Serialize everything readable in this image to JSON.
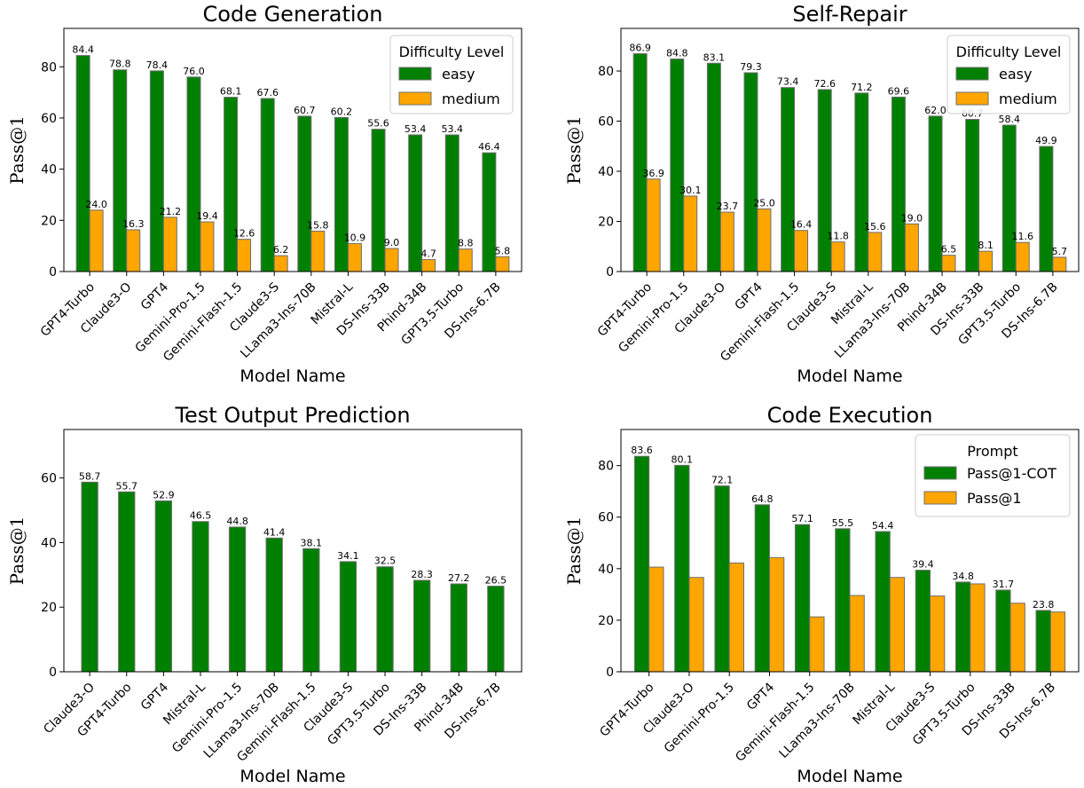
{
  "chart_data": [
    {
      "type": "bar",
      "title": "Code Generation",
      "xlabel": "Model Name",
      "ylabel": "Pass@1",
      "ylim": [
        0,
        95
      ],
      "yticks": [
        0,
        20,
        40,
        60,
        80
      ],
      "legend": {
        "title": "Difficulty Level",
        "placement": "top-right"
      },
      "categories": [
        "GPT4-Turbo",
        "Claude3-O",
        "GPT4",
        "Gemini-Pro-1.5",
        "Gemini-Flash-1.5",
        "Claude3-S",
        "LLama3-Ins-70B",
        "Mistral-L",
        "DS-Ins-33B",
        "Phind-34B",
        "GPT3.5-Turbo",
        "DS-Ins-6.7B"
      ],
      "series": [
        {
          "name": "easy",
          "color": "#008000",
          "values": [
            84.4,
            78.8,
            78.4,
            76.0,
            68.1,
            67.6,
            60.7,
            60.2,
            55.6,
            53.4,
            53.4,
            46.4
          ],
          "labels": [
            "84.4",
            "78.8",
            "78.4",
            "76.0",
            "68.1",
            "67.6",
            "60.7",
            "60.2",
            "55.6",
            "53.4",
            "53.4",
            "46.4"
          ]
        },
        {
          "name": "medium",
          "color": "#ffa500",
          "values": [
            24.0,
            16.3,
            21.2,
            19.4,
            12.6,
            6.2,
            15.8,
            10.9,
            9.0,
            4.7,
            8.8,
            5.8
          ],
          "labels": [
            "24.0",
            "16.3",
            "21.2",
            "19.4",
            "12.6",
            "6.2",
            "15.8",
            "10.9",
            "9.0",
            "4.7",
            "8.8",
            "5.8"
          ]
        }
      ]
    },
    {
      "type": "bar",
      "title": "Self-Repair",
      "xlabel": "Model Name",
      "ylabel": "Pass@1",
      "ylim": [
        0,
        97
      ],
      "yticks": [
        0,
        20,
        40,
        60,
        80
      ],
      "legend": {
        "title": "Difficulty Level",
        "placement": "top-right"
      },
      "categories": [
        "GPT4-Turbo",
        "Gemini-Pro-1.5",
        "Claude3-O",
        "GPT4",
        "Gemini-Flash-1.5",
        "Claude3-S",
        "Mistral-L",
        "LLama3-Ins-70B",
        "Phind-34B",
        "DS-Ins-33B",
        "GPT3.5-Turbo",
        "DS-Ins-6.7B"
      ],
      "series": [
        {
          "name": "easy",
          "color": "#008000",
          "values": [
            86.9,
            84.8,
            83.1,
            79.3,
            73.4,
            72.6,
            71.2,
            69.6,
            62.0,
            60.7,
            58.4,
            49.9
          ],
          "labels": [
            "86.9",
            "84.8",
            "83.1",
            "79.3",
            "73.4",
            "72.6",
            "71.2",
            "69.6",
            "62.0",
            "60.7",
            "58.4",
            "49.9"
          ]
        },
        {
          "name": "medium",
          "color": "#ffa500",
          "values": [
            36.9,
            30.1,
            23.7,
            25.0,
            16.4,
            11.8,
            15.6,
            19.0,
            6.5,
            8.1,
            11.6,
            5.7
          ],
          "labels": [
            "36.9",
            "30.1",
            "23.7",
            "25.0",
            "16.4",
            "11.8",
            "15.6",
            "19.0",
            "6.5",
            "8.1",
            "11.6",
            "5.7"
          ]
        }
      ]
    },
    {
      "type": "bar",
      "title": "Test Output Prediction",
      "xlabel": "Model Name",
      "ylabel": "Pass@1",
      "ylim": [
        0,
        75
      ],
      "yticks": [
        0,
        20,
        40,
        60
      ],
      "categories": [
        "Claude3-O",
        "GPT4-Turbo",
        "GPT4",
        "Mistral-L",
        "Gemini-Pro-1.5",
        "LLama3-Ins-70B",
        "Gemini-Flash-1.5",
        "Claude3-S",
        "GPT3.5-Turbo",
        "DS-Ins-33B",
        "Phind-34B",
        "DS-Ins-6.7B"
      ],
      "series": [
        {
          "color": "#008000",
          "values": [
            58.7,
            55.7,
            52.9,
            46.5,
            44.8,
            41.4,
            38.1,
            34.1,
            32.5,
            28.3,
            27.2,
            26.5
          ],
          "labels": [
            "58.7",
            "55.7",
            "52.9",
            "46.5",
            "44.8",
            "41.4",
            "38.1",
            "34.1",
            "32.5",
            "28.3",
            "27.2",
            "26.5"
          ]
        }
      ]
    },
    {
      "type": "bar",
      "title": "Code Execution",
      "xlabel": "Model Name",
      "ylabel": "Pass@1",
      "ylim": [
        0,
        94
      ],
      "yticks": [
        0,
        20,
        40,
        60,
        80
      ],
      "legend": {
        "title": "Prompt",
        "placement": "top-right"
      },
      "categories": [
        "GPT4-Turbo",
        "Claude3-O",
        "Gemini-Pro-1.5",
        "GPT4",
        "Gemini-Flash-1.5",
        "LLama3-Ins-70B",
        "Mistral-L",
        "Claude3-S",
        "GPT3.5-Turbo",
        "DS-Ins-33B",
        "DS-Ins-6.7B"
      ],
      "series": [
        {
          "name": "Pass@1-COT",
          "color": "#008000",
          "values": [
            83.6,
            80.1,
            72.1,
            64.8,
            57.1,
            55.5,
            54.4,
            39.4,
            34.8,
            31.7,
            23.8
          ],
          "labels": [
            "83.6",
            "80.1",
            "72.1",
            "64.8",
            "57.1",
            "55.5",
            "54.4",
            "39.4",
            "34.8",
            "31.7",
            "23.8"
          ]
        },
        {
          "name": "Pass@1",
          "color": "#ffa500",
          "values": [
            40.6,
            36.6,
            42.2,
            44.3,
            21.3,
            29.6,
            36.6,
            29.4,
            34.1,
            26.6,
            23.2
          ],
          "labels": null
        }
      ]
    }
  ]
}
